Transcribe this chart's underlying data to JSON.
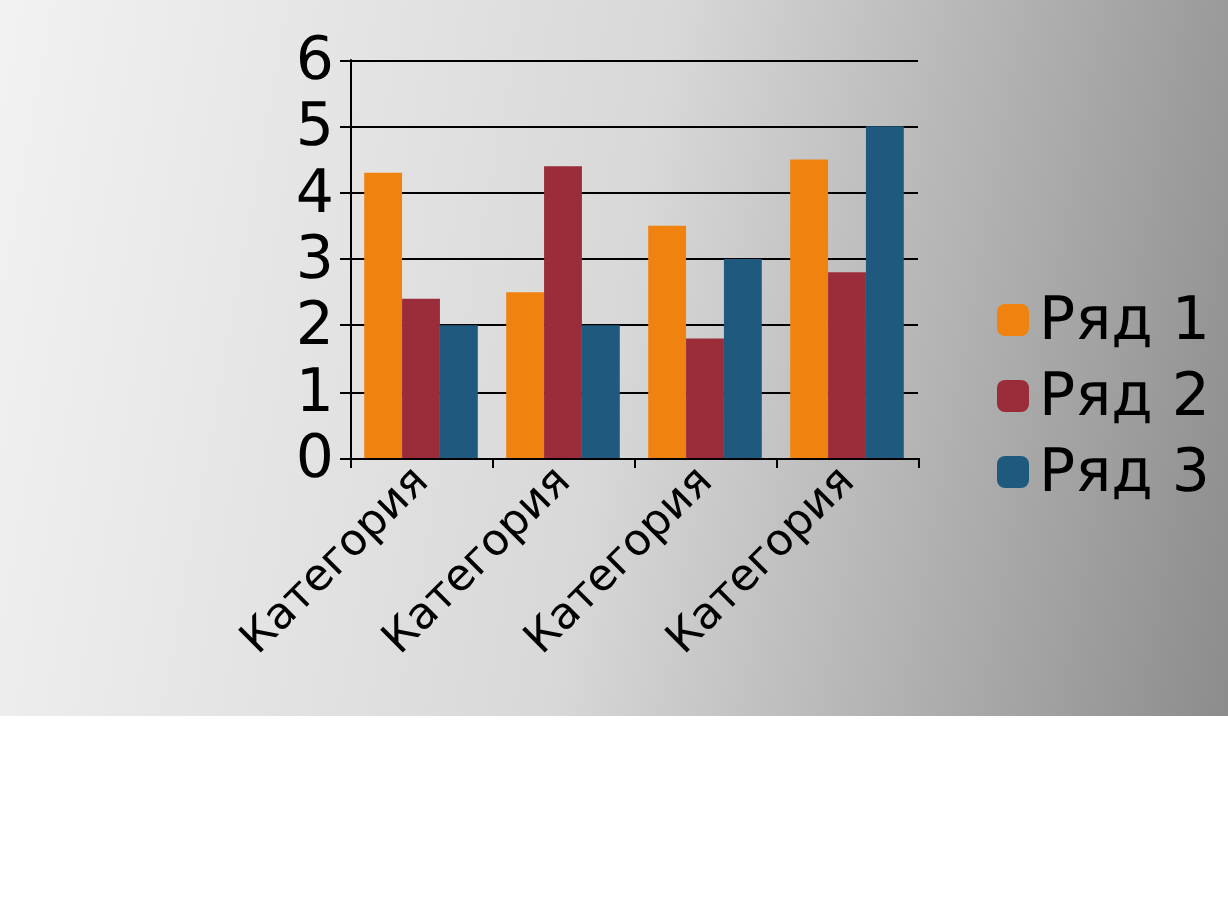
{
  "chart_data": {
    "type": "bar",
    "categories": [
      "Категория",
      "Категория",
      "Категория",
      "Категория"
    ],
    "series": [
      {
        "name": "Ряд 1",
        "color": "#f0820f",
        "values": [
          4.3,
          2.5,
          3.5,
          4.5
        ]
      },
      {
        "name": "Ряд 2",
        "color": "#9b2d3a",
        "values": [
          2.4,
          4.4,
          1.8,
          2.8
        ]
      },
      {
        "name": "Ряд 3",
        "color": "#1f5a7e",
        "values": [
          2,
          2,
          3,
          5
        ]
      }
    ],
    "ylim": [
      0,
      6
    ],
    "yticks": [
      0,
      1,
      2,
      3,
      4,
      5,
      6
    ],
    "grid": "y",
    "legend": "right"
  }
}
